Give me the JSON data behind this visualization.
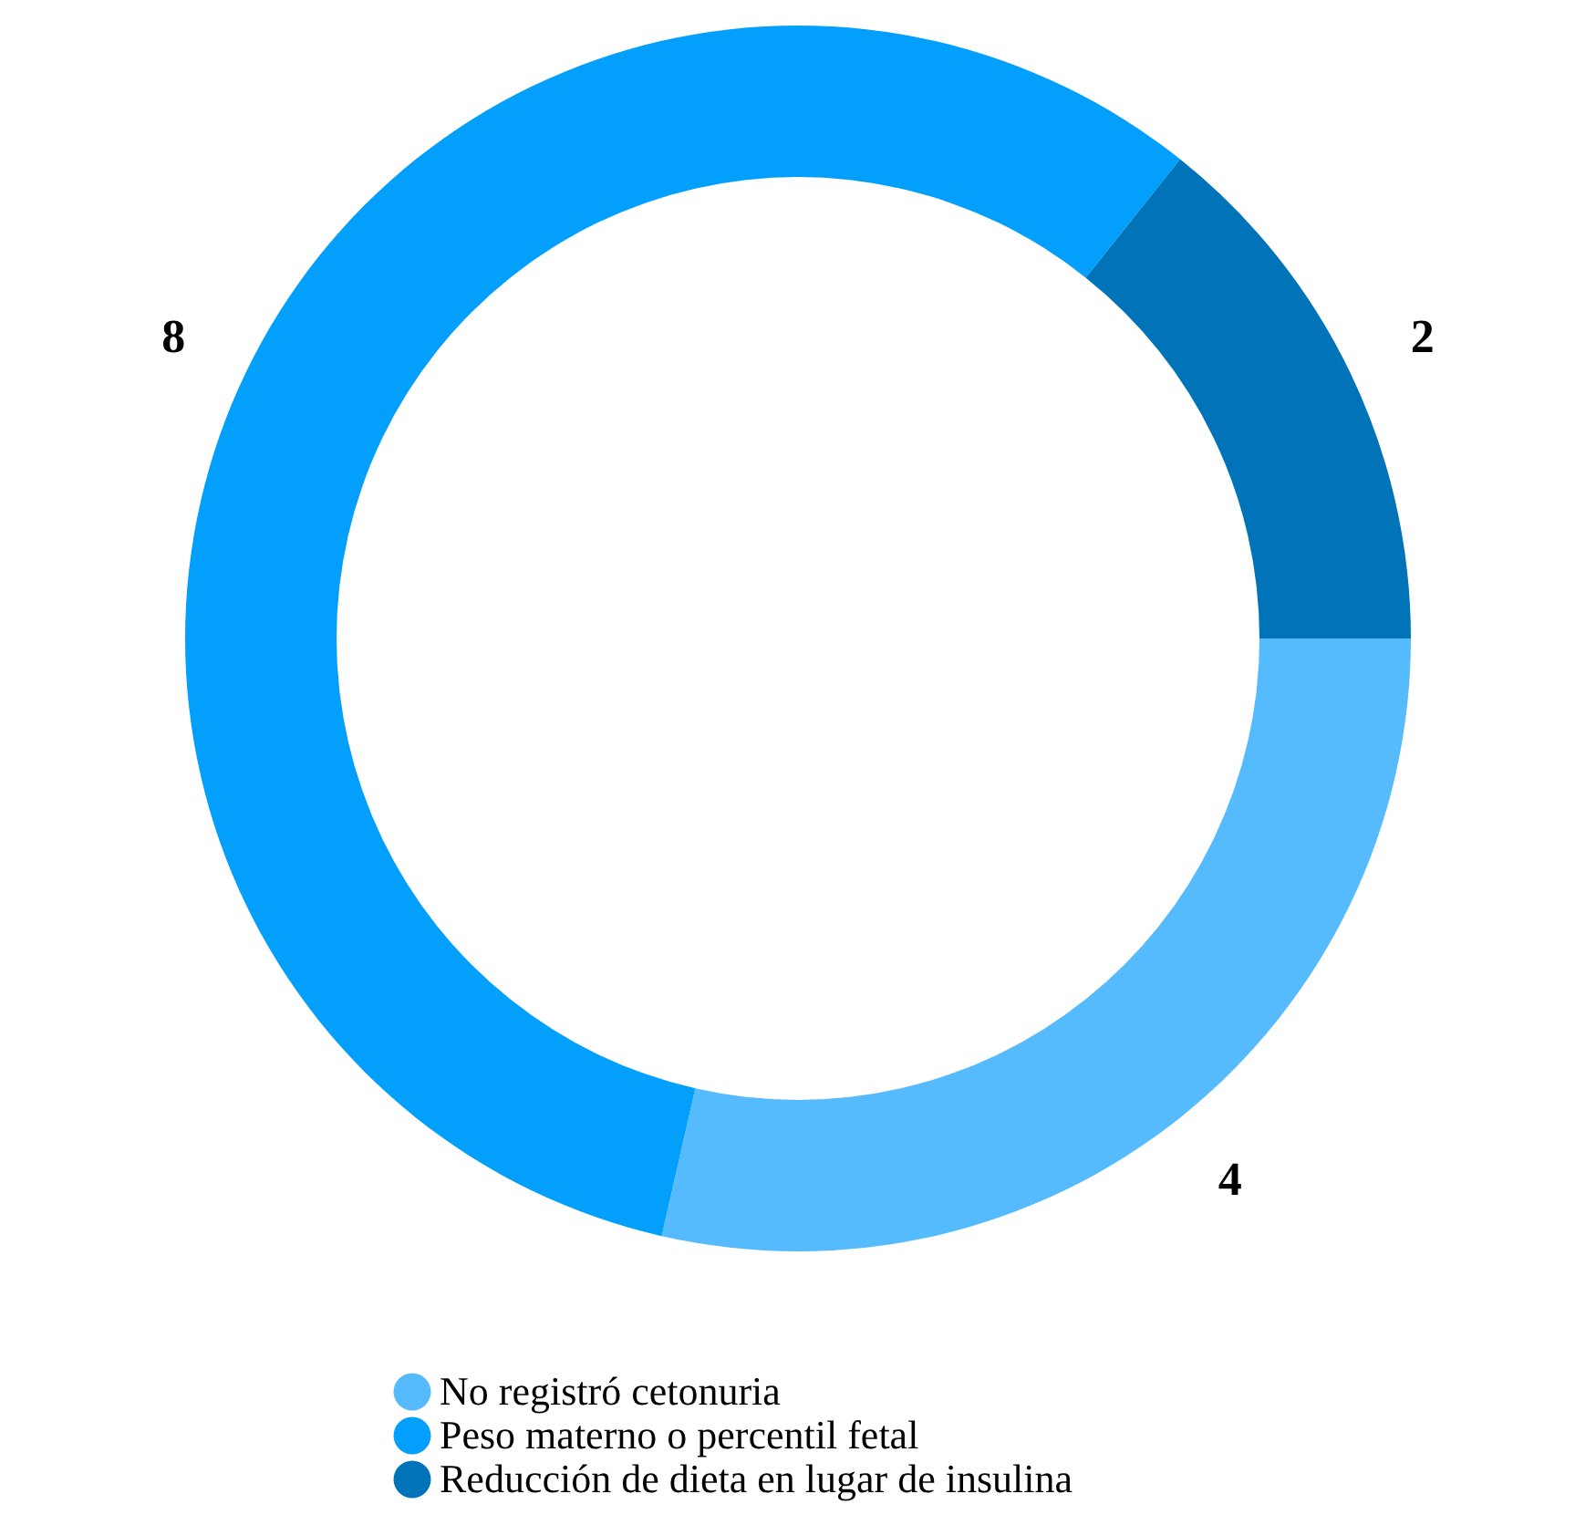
{
  "chart_data": {
    "type": "donut",
    "categories": [
      "No registró cetonuria",
      "Peso materno o percentil fetal",
      "Reducción de dieta en lugar de insulina"
    ],
    "values": [
      4,
      8,
      2
    ],
    "colors": [
      "#56bbfd",
      "#039ffd",
      "#0173b9"
    ],
    "data_labels": true,
    "legend": "bottom"
  }
}
